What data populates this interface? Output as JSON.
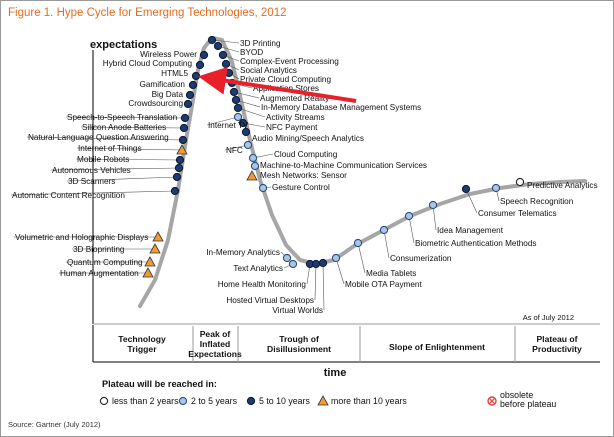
{
  "figure_title": "Figure 1. Hype Cycle for Emerging Technologies, 2012",
  "source": "Source: Gartner (July 2012)",
  "chart_data": {
    "type": "scatter",
    "ylabel": "expectations",
    "xlabel": "time",
    "as_of": "As of July 2012",
    "phases": [
      {
        "lines": [
          "Technology",
          "Trigger"
        ]
      },
      {
        "lines": [
          "Peak of",
          "Inflated",
          "Expectations"
        ]
      },
      {
        "lines": [
          "Trough of",
          "Disillusionment"
        ]
      },
      {
        "lines": [
          "Slope of Enlightenment"
        ]
      },
      {
        "lines": [
          "Plateau of",
          "Productivity"
        ]
      }
    ],
    "legend_title": "Plateau will be reached in:",
    "legend": [
      {
        "key": "lt2",
        "label": "less than 2 years"
      },
      {
        "key": "2to5",
        "label": "2 to 5 years"
      },
      {
        "key": "5to10",
        "label": "5 to 10 years"
      },
      {
        "key": "gt10",
        "label": "more than 10 years"
      },
      {
        "key": "obsolete",
        "label": "obsolete before plateau",
        "lines": [
          "obsolete",
          "before plateau"
        ]
      }
    ],
    "colors": {
      "lt2": "#ffffff",
      "2to5": "#a9c7e2",
      "5to10": "#1f3a6e",
      "gt10": "#f29b36",
      "obsolete": "#e8423f",
      "curve": "#a6a6a6",
      "arrow": "#e8202a",
      "title": "#e36c1e"
    },
    "technologies": [
      {
        "name": "Human Augmentation",
        "cat": "gt10",
        "pos": 0.12,
        "side": "left"
      },
      {
        "name": "Quantum Computing",
        "cat": "gt10",
        "pos": 0.14,
        "side": "left"
      },
      {
        "name": "3D Bioprinting",
        "cat": "gt10",
        "pos": 0.16,
        "side": "left"
      },
      {
        "name": "Volumetric and Holographic Displays",
        "cat": "gt10",
        "pos": 0.18,
        "side": "left"
      },
      {
        "name": "Automatic Content Recognition",
        "cat": "5to10",
        "pos": 0.26,
        "side": "left"
      },
      {
        "name": "3D Scanners",
        "cat": "5to10",
        "pos": 0.28,
        "side": "left"
      },
      {
        "name": "Autonomous Vehicles",
        "cat": "5to10",
        "pos": 0.29,
        "side": "left"
      },
      {
        "name": "Mobile Robots",
        "cat": "5to10",
        "pos": 0.3,
        "side": "left"
      },
      {
        "name": "Internet of Things",
        "cat": "gt10",
        "pos": 0.31,
        "side": "left"
      },
      {
        "name": "Natural-Language Question Answering",
        "cat": "5to10",
        "pos": 0.32,
        "side": "left"
      },
      {
        "name": "Silicon Anode Batteries",
        "cat": "5to10",
        "pos": 0.33,
        "side": "left"
      },
      {
        "name": "Speech-to-Speech Translation",
        "cat": "5to10",
        "pos": 0.34,
        "side": "left"
      },
      {
        "name": "Crowdsourcing",
        "cat": "5to10",
        "pos": 0.36,
        "side": "left"
      },
      {
        "name": "Big Data",
        "cat": "5to10",
        "pos": 0.37,
        "side": "left"
      },
      {
        "name": "Gamification",
        "cat": "5to10",
        "pos": 0.38,
        "side": "left"
      },
      {
        "name": "HTML5",
        "cat": "5to10",
        "pos": 0.39,
        "side": "left"
      },
      {
        "name": "Hybrid Cloud Computing",
        "cat": "5to10",
        "pos": 0.4,
        "side": "left"
      },
      {
        "name": "Wireless Power",
        "cat": "5to10",
        "pos": 0.41,
        "side": "left"
      },
      {
        "name": "3D Printing",
        "cat": "5to10",
        "pos": 0.43,
        "side": "right"
      },
      {
        "name": "BYOD",
        "cat": "5to10",
        "pos": 0.44,
        "side": "right"
      },
      {
        "name": "Complex-Event Processing",
        "cat": "5to10",
        "pos": 0.45,
        "side": "right"
      },
      {
        "name": "Social Analytics",
        "cat": "5to10",
        "pos": 0.46,
        "side": "right"
      },
      {
        "name": "Private Cloud Computing",
        "cat": "5to10",
        "pos": 0.47,
        "side": "right"
      },
      {
        "name": "Application Stores",
        "cat": "5to10",
        "pos": 0.48,
        "side": "right"
      },
      {
        "name": "Augmented Reality",
        "cat": "5to10",
        "pos": 0.49,
        "side": "right"
      },
      {
        "name": "In-Memory Database Management Systems",
        "cat": "5to10",
        "pos": 0.5,
        "side": "right"
      },
      {
        "name": "Activity Streams",
        "cat": "5to10",
        "pos": 0.51,
        "side": "right"
      },
      {
        "name": "Internet TV",
        "cat": "2to5",
        "pos": 0.52,
        "side": "left"
      },
      {
        "name": "NFC Payment",
        "cat": "5to10",
        "pos": 0.53,
        "side": "right"
      },
      {
        "name": "Audio Mining/Speech Analytics",
        "cat": "5to10",
        "pos": 0.54,
        "side": "right"
      },
      {
        "name": "NFC",
        "cat": "2to5",
        "pos": 0.55,
        "side": "left"
      },
      {
        "name": "Cloud Computing",
        "cat": "2to5",
        "pos": 0.57,
        "side": "right"
      },
      {
        "name": "Machine-to-Machine Communication Services",
        "cat": "2to5",
        "pos": 0.58,
        "side": "right"
      },
      {
        "name": "Mesh Networks: Sensor",
        "cat": "gt10",
        "pos": 0.59,
        "side": "right"
      },
      {
        "name": "Gesture Control",
        "cat": "2to5",
        "pos": 0.61,
        "side": "right"
      },
      {
        "name": "In-Memory Analytics",
        "cat": "2to5",
        "pos": 0.7,
        "side": "left"
      },
      {
        "name": "Text Analytics",
        "cat": "2to5",
        "pos": 0.72,
        "side": "left"
      },
      {
        "name": "Home Health Monitoring",
        "cat": "5to10",
        "pos": 0.74,
        "side": "left"
      },
      {
        "name": "Hosted Virtual Desktops",
        "cat": "5to10",
        "pos": 0.75,
        "side": "left"
      },
      {
        "name": "Virtual Worlds",
        "cat": "5to10",
        "pos": 0.76,
        "side": "left"
      },
      {
        "name": "Mobile OTA Payment",
        "cat": "2to5",
        "pos": 0.77,
        "side": "right"
      },
      {
        "name": "Media Tablets",
        "cat": "2to5",
        "pos": 0.79,
        "side": "right"
      },
      {
        "name": "Consumerization",
        "cat": "2to5",
        "pos": 0.82,
        "side": "right"
      },
      {
        "name": "Biometric Authentication Methods",
        "cat": "2to5",
        "pos": 0.84,
        "side": "right"
      },
      {
        "name": "Idea Management",
        "cat": "2to5",
        "pos": 0.87,
        "side": "right"
      },
      {
        "name": "Consumer Telematics",
        "cat": "5to10",
        "pos": 0.9,
        "side": "right"
      },
      {
        "name": "Speech Recognition",
        "cat": "2to5",
        "pos": 0.93,
        "side": "right"
      },
      {
        "name": "Predictive Analytics",
        "cat": "lt2",
        "pos": 0.96,
        "side": "right"
      }
    ],
    "highlight": "HTML5"
  }
}
